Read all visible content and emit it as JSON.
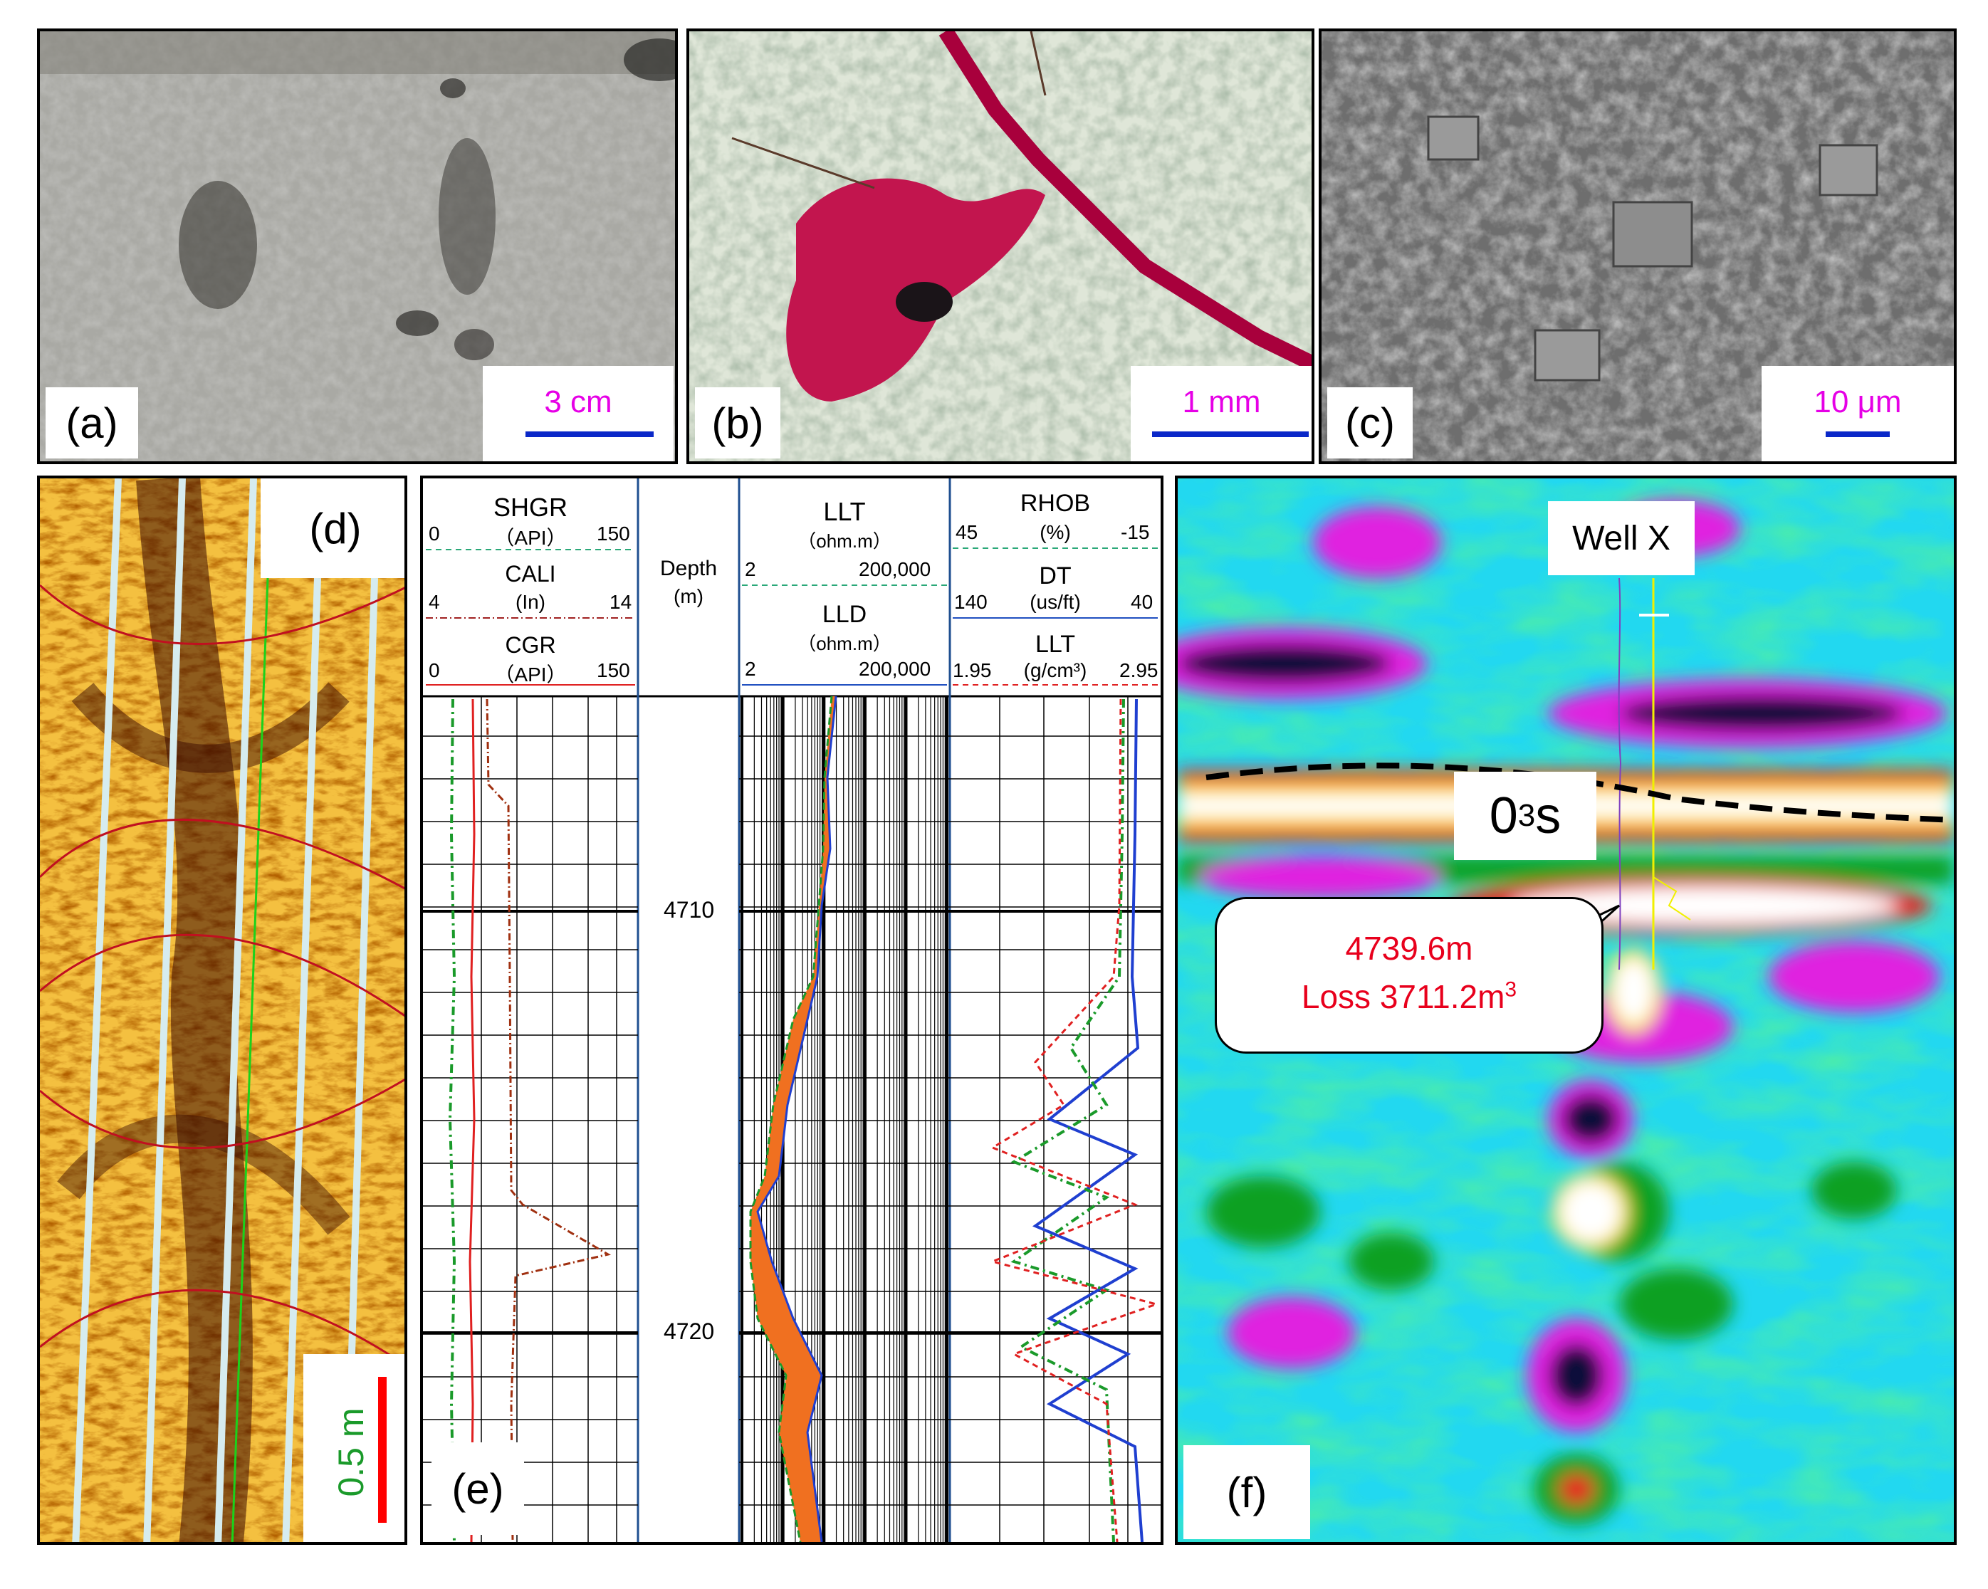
{
  "panels": {
    "a": {
      "label": "(a)",
      "scale_text": "3 cm"
    },
    "b": {
      "label": "(b)",
      "scale_text": "1 mm"
    },
    "c": {
      "label": "(c)",
      "scale_text": "10 μm"
    },
    "d": {
      "label": "(d)",
      "scale_text": "0.5 m"
    },
    "e": {
      "label": "(e)",
      "track1": {
        "shgr": {
          "name": "SHGR",
          "unit": "（API）",
          "min": "0",
          "max": "150"
        },
        "cali": {
          "name": "CALI",
          "unit": "(In)",
          "min": "4",
          "max": "14"
        },
        "cgr": {
          "name": "CGR",
          "unit": "（API）",
          "min": "0",
          "max": "150"
        }
      },
      "depth_header": {
        "title": "Depth",
        "unit": "(m)"
      },
      "track2": {
        "llt": {
          "name": "LLT",
          "unit": "（ohm.m）",
          "min": "2",
          "max": "200,000"
        },
        "lld": {
          "name": "LLD",
          "unit": "（ohm.m）",
          "min": "2",
          "max": "200,000"
        }
      },
      "track3": {
        "rhob": {
          "name": "RHOB",
          "unit": "(%)",
          "min": "45",
          "max": "-15"
        },
        "dt": {
          "name": "DT",
          "unit": "(us/ft)",
          "min": "140",
          "max": "40"
        },
        "llt": {
          "name": "LLT",
          "unit": "(g/cm³)",
          "min": "1.95",
          "max": "2.95"
        }
      },
      "depths": [
        "4710",
        "4720"
      ]
    },
    "f": {
      "label": "(f)",
      "well_label": "Well X",
      "horizon_main": "0",
      "horizon_sub": "3",
      "horizon_tail": "s",
      "callout_line1": "4739.6m",
      "callout_line2_main": "Loss 3711.2m",
      "callout_line2_sup": "3"
    }
  },
  "colors": {
    "scale_text": "#e600e6",
    "scale_bar": "#0a28c8",
    "d_scale_text": "#1a9a2a",
    "d_scale_bar": "#ff0000",
    "callout_text": "#e8001c"
  }
}
